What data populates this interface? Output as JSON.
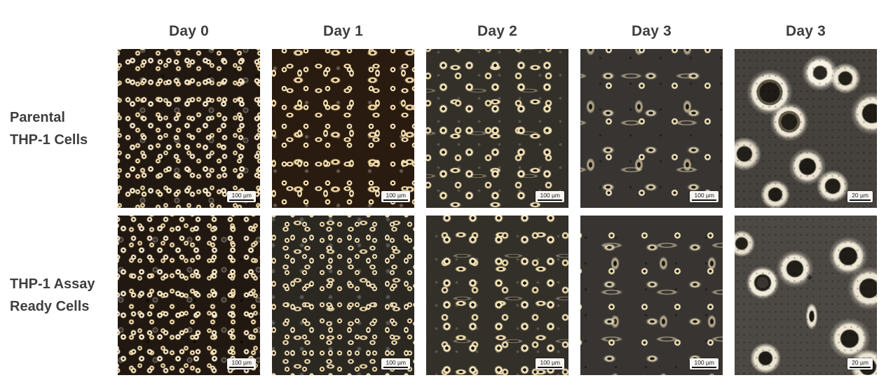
{
  "figure": {
    "column_headers": [
      "Day 0",
      "Day 1",
      "Day 2",
      "Day 3",
      "Day 3"
    ],
    "rows": [
      {
        "id": "parental",
        "label_line1": "Parental",
        "label_line2": "THP-1 Cells"
      },
      {
        "id": "assay_ready",
        "label_line1": "THP-1 Assay",
        "label_line2": "Ready Cells"
      }
    ],
    "tiles": [
      {
        "row": "Parental THP-1 Cells",
        "column": "Day 0",
        "description": "dense round suspension cells, dark brown field",
        "scale_label": "100 µm"
      },
      {
        "row": "Parental THP-1 Cells",
        "column": "Day 1",
        "description": "clumped irregular cells, warm brown field",
        "scale_label": "100 µm"
      },
      {
        "row": "Parental THP-1 Cells",
        "column": "Day 2",
        "description": "medium ring-shaped cells, some spindles, gray-brown field",
        "scale_label": "100 µm"
      },
      {
        "row": "Parental THP-1 Cells",
        "column": "Day 3",
        "description": "sparse elongated adherent cells, gray field",
        "scale_label": "100 µm"
      },
      {
        "row": "Parental THP-1 Cells",
        "column": "Day 3",
        "description": "high-magnification granular adherent cells with bright halos",
        "scale_label": "20 µm"
      },
      {
        "row": "THP-1 Assay Ready Cells",
        "column": "Day 0",
        "description": "dense round suspension cells, dark brown field",
        "scale_label": "100 µm"
      },
      {
        "row": "THP-1 Assay Ready Cells",
        "column": "Day 1",
        "description": "dense small clumps, gray-brown field",
        "scale_label": "100 µm"
      },
      {
        "row": "THP-1 Assay Ready Cells",
        "column": "Day 2",
        "description": "medium ring-shaped cells, gray-brown field",
        "scale_label": "100 µm"
      },
      {
        "row": "THP-1 Assay Ready Cells",
        "column": "Day 3",
        "description": "sparse irregular adherent cells, gray field",
        "scale_label": "100 µm"
      },
      {
        "row": "THP-1 Assay Ready Cells",
        "column": "Day 3",
        "description": "high-magnification round granular cells with bright rims",
        "scale_label": "20 µm"
      }
    ],
    "colors": {
      "canvas": "#ffffff",
      "label_text": "#3e3e3e",
      "cell_bright": "#f2e2b8",
      "scalebar_background": "#f7f6f3",
      "scalebar_text": "#1a1a1a",
      "micrograph_backgrounds": {
        "day0": "#211811",
        "day1_parental": "#2a1b10",
        "day1_assay_ready": "#2b2721",
        "day2": "#332f29",
        "day3": "#373431",
        "day3_zoom_parental": "#45413c",
        "day3_zoom_assay_ready": "#4c4843"
      }
    }
  }
}
